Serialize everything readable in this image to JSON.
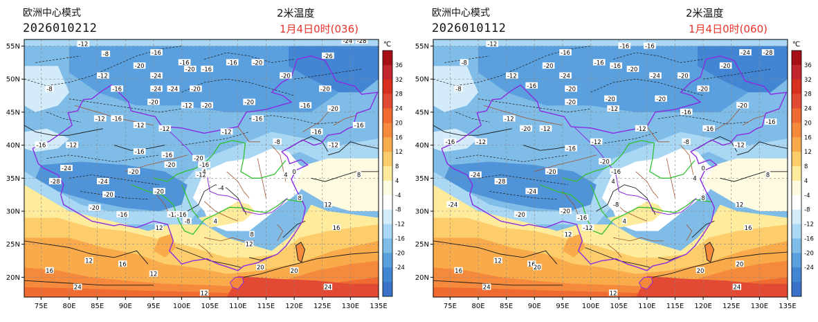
{
  "panels": [
    {
      "id": "left",
      "model": "欧洲中心模式",
      "run": "2026010212",
      "variable": "2米温度",
      "valid": "1月4日0时(036)",
      "contour_labels": [
        {
          "v": -12,
          "lon": 82.5,
          "lat": 55.3
        },
        {
          "v": -8,
          "lon": 86.5,
          "lat": 53.8
        },
        {
          "v": -16,
          "lon": 95.5,
          "lat": 54.0
        },
        {
          "v": -20,
          "lon": 92.5,
          "lat": 52.0
        },
        {
          "v": -24,
          "lon": 95.5,
          "lat": 50.5
        },
        {
          "v": -24,
          "lon": 95.5,
          "lat": 48.5
        },
        {
          "v": -24,
          "lon": 98.5,
          "lat": 48.5
        },
        {
          "v": -20,
          "lon": 102.5,
          "lat": 48.5
        },
        {
          "v": -16,
          "lon": 104.5,
          "lat": 51.5
        },
        {
          "v": -20,
          "lon": 101.5,
          "lat": 51.5
        },
        {
          "v": -16,
          "lon": 100.5,
          "lat": 52.5
        },
        {
          "v": -16,
          "lon": 109.0,
          "lat": 52.5
        },
        {
          "v": -20,
          "lon": 113.5,
          "lat": 52.5
        },
        {
          "v": -12,
          "lon": 86.0,
          "lat": 50.5
        },
        {
          "v": -16,
          "lon": 88.5,
          "lat": 48.5
        },
        {
          "v": -20,
          "lon": 95.0,
          "lat": 46.5
        },
        {
          "v": -8,
          "lon": 76.5,
          "lat": 48.5
        },
        {
          "v": -20,
          "lon": 118.5,
          "lat": 50.5
        },
        {
          "v": -26,
          "lon": 126.0,
          "lat": 53.5
        },
        {
          "v": -24,
          "lon": 129.5,
          "lat": 55.8
        },
        {
          "v": -28,
          "lon": 132.0,
          "lat": 55.8
        },
        {
          "v": -20,
          "lon": 125.5,
          "lat": 48.5
        },
        {
          "v": -16,
          "lon": 122.0,
          "lat": 46.0
        },
        {
          "v": -20,
          "lon": 112.0,
          "lat": 46.5
        },
        {
          "v": -12,
          "lon": 101.0,
          "lat": 46.0
        },
        {
          "v": -20,
          "lon": 104.5,
          "lat": 46.0
        },
        {
          "v": -16,
          "lon": 113.5,
          "lat": 44.0
        },
        {
          "v": -12,
          "lon": 108.0,
          "lat": 42.0
        },
        {
          "v": -20,
          "lon": 127.0,
          "lat": 45.5
        },
        {
          "v": -16,
          "lon": 131.5,
          "lat": 43.0
        },
        {
          "v": -16,
          "lon": 124.0,
          "lat": 42.0
        },
        {
          "v": -12,
          "lon": 127.0,
          "lat": 40.0
        },
        {
          "v": -8,
          "lon": 117.0,
          "lat": 40.5
        },
        {
          "v": -12,
          "lon": 85.5,
          "lat": 44.0
        },
        {
          "v": -16,
          "lon": 88.5,
          "lat": 44.0
        },
        {
          "v": -12,
          "lon": 92.5,
          "lat": 43.0
        },
        {
          "v": -12,
          "lon": 97.0,
          "lat": 42.5
        },
        {
          "v": -16,
          "lon": 75.0,
          "lat": 40.0
        },
        {
          "v": -12,
          "lon": 80.5,
          "lat": 40.0
        },
        {
          "v": -16,
          "lon": 92.5,
          "lat": 39.0
        },
        {
          "v": -20,
          "lon": 103.0,
          "lat": 38.0
        },
        {
          "v": -16,
          "lon": 104.0,
          "lat": 37.0
        },
        {
          "v": -20,
          "lon": 98.0,
          "lat": 37.0
        },
        {
          "v": -16,
          "lon": 97.5,
          "lat": 38.5
        },
        {
          "v": -12,
          "lon": 103.5,
          "lat": 35.5
        },
        {
          "v": -24,
          "lon": 79.5,
          "lat": 36.5
        },
        {
          "v": -28,
          "lon": 77.5,
          "lat": 34.5
        },
        {
          "v": -24,
          "lon": 86.0,
          "lat": 34.5
        },
        {
          "v": -20,
          "lon": 91.5,
          "lat": 36.0
        },
        {
          "v": -20,
          "lon": 96.0,
          "lat": 33.0
        },
        {
          "v": -20,
          "lon": 87.0,
          "lat": 32.5
        },
        {
          "v": -20,
          "lon": 84.5,
          "lat": 30.5
        },
        {
          "v": -16,
          "lon": 89.5,
          "lat": 29.5
        },
        {
          "v": -12,
          "lon": 98.5,
          "lat": 29.5
        },
        {
          "v": -16,
          "lon": 100.0,
          "lat": 29.5
        },
        {
          "v": -8,
          "lon": 101.0,
          "lat": 28.5
        },
        {
          "v": -4,
          "lon": 107.0,
          "lat": 33.5
        },
        {
          "v": 4,
          "lon": 104.0,
          "lat": 36.0
        },
        {
          "v": 4,
          "lon": 118.5,
          "lat": 35.5
        },
        {
          "v": 8,
          "lon": 121.0,
          "lat": 32.0
        },
        {
          "v": 0,
          "lon": 120.0,
          "lat": 36.0
        },
        {
          "v": 8,
          "lon": 112.5,
          "lat": 26.5
        },
        {
          "v": 12,
          "lon": 96.0,
          "lat": 27.5
        },
        {
          "v": 12,
          "lon": 83.5,
          "lat": 22.5
        },
        {
          "v": 16,
          "lon": 89.5,
          "lat": 22.0
        },
        {
          "v": 12,
          "lon": 95.0,
          "lat": 20.5
        },
        {
          "v": 16,
          "lon": 76.5,
          "lat": 21.0
        },
        {
          "v": 20,
          "lon": 114.0,
          "lat": 21.5
        },
        {
          "v": 12,
          "lon": 112.0,
          "lat": 25.0
        },
        {
          "v": 16,
          "lon": 127.5,
          "lat": 27.5
        },
        {
          "v": 12,
          "lon": 126.0,
          "lat": 31.0
        },
        {
          "v": 20,
          "lon": 120.0,
          "lat": 21.0
        },
        {
          "v": 24,
          "lon": 126.0,
          "lat": 18.5
        },
        {
          "v": 24,
          "lon": 81.5,
          "lat": 18.5
        },
        {
          "v": 12,
          "lon": 104.0,
          "lat": 17.6
        },
        {
          "v": 4,
          "lon": 106.0,
          "lat": 28.5
        },
        {
          "v": 8,
          "lon": 131.5,
          "lat": 35.5
        }
      ]
    },
    {
      "id": "right",
      "model": "欧洲中心模式",
      "run": "2026010112",
      "variable": "2米温度",
      "valid": "1月4日0时(060)",
      "contour_labels": [
        {
          "v": -12,
          "lon": 82.5,
          "lat": 55.3
        },
        {
          "v": -8,
          "lon": 77.5,
          "lat": 52.5
        },
        {
          "v": -16,
          "lon": 95.5,
          "lat": 54.0
        },
        {
          "v": -20,
          "lon": 92.5,
          "lat": 52.0
        },
        {
          "v": -24,
          "lon": 95.5,
          "lat": 50.5
        },
        {
          "v": -20,
          "lon": 96.5,
          "lat": 48.5
        },
        {
          "v": -16,
          "lon": 101.5,
          "lat": 52.5
        },
        {
          "v": -16,
          "lon": 104.5,
          "lat": 52.0
        },
        {
          "v": -20,
          "lon": 107.5,
          "lat": 51.5
        },
        {
          "v": -16,
          "lon": 110.5,
          "lat": 55.0
        },
        {
          "v": -16,
          "lon": 106.0,
          "lat": 55.0
        },
        {
          "v": -24,
          "lon": 111.5,
          "lat": 50.5
        },
        {
          "v": -20,
          "lon": 116.5,
          "lat": 50.5
        },
        {
          "v": -12,
          "lon": 86.0,
          "lat": 50.5
        },
        {
          "v": -16,
          "lon": 89.5,
          "lat": 49.0
        },
        {
          "v": -20,
          "lon": 96.5,
          "lat": 46.5
        },
        {
          "v": -8,
          "lon": 76.5,
          "lat": 48.5
        },
        {
          "v": -20,
          "lon": 120.0,
          "lat": 48.5
        },
        {
          "v": -24,
          "lon": 127.5,
          "lat": 54.0
        },
        {
          "v": -28,
          "lon": 131.5,
          "lat": 54.0
        },
        {
          "v": -20,
          "lon": 124.0,
          "lat": 52.0
        },
        {
          "v": -20,
          "lon": 127.0,
          "lat": 46.0
        },
        {
          "v": -16,
          "lon": 117.0,
          "lat": 45.0
        },
        {
          "v": -20,
          "lon": 112.5,
          "lat": 47.0
        },
        {
          "v": -12,
          "lon": 104.0,
          "lat": 45.5
        },
        {
          "v": -20,
          "lon": 103.5,
          "lat": 47.0
        },
        {
          "v": -16,
          "lon": 121.0,
          "lat": 42.5
        },
        {
          "v": -12,
          "lon": 109.0,
          "lat": 42.5
        },
        {
          "v": -16,
          "lon": 132.0,
          "lat": 43.5
        },
        {
          "v": -12,
          "lon": 126.5,
          "lat": 40.0
        },
        {
          "v": -8,
          "lon": 117.0,
          "lat": 40.5
        },
        {
          "v": -12,
          "lon": 85.5,
          "lat": 44.0
        },
        {
          "v": -20,
          "lon": 88.5,
          "lat": 42.5
        },
        {
          "v": -12,
          "lon": 92.0,
          "lat": 42.5
        },
        {
          "v": -12,
          "lon": 101.0,
          "lat": 40.5
        },
        {
          "v": -16,
          "lon": 75.0,
          "lat": 40.5
        },
        {
          "v": -12,
          "lon": 80.5,
          "lat": 40.5
        },
        {
          "v": -16,
          "lon": 96.5,
          "lat": 39.5
        },
        {
          "v": -20,
          "lon": 102.5,
          "lat": 37.5
        },
        {
          "v": -16,
          "lon": 104.5,
          "lat": 36.0
        },
        {
          "v": -24,
          "lon": 79.5,
          "lat": 35.5
        },
        {
          "v": -28,
          "lon": 84.0,
          "lat": 34.5
        },
        {
          "v": -24,
          "lon": 89.5,
          "lat": 33.0
        },
        {
          "v": -20,
          "lon": 93.0,
          "lat": 36.0
        },
        {
          "v": -20,
          "lon": 95.5,
          "lat": 30.0
        },
        {
          "v": -20,
          "lon": 87.5,
          "lat": 29.5
        },
        {
          "v": -24,
          "lon": 75.5,
          "lat": 31.0
        },
        {
          "v": -16,
          "lon": 98.5,
          "lat": 29.0
        },
        {
          "v": -12,
          "lon": 99.5,
          "lat": 27.5
        },
        {
          "v": -8,
          "lon": 104.5,
          "lat": 31.0
        },
        {
          "v": 4,
          "lon": 104.0,
          "lat": 34.5
        },
        {
          "v": 4,
          "lon": 118.5,
          "lat": 35.0
        },
        {
          "v": 8,
          "lon": 120.0,
          "lat": 32.0
        },
        {
          "v": 0,
          "lon": 120.0,
          "lat": 36.5
        },
        {
          "v": 12,
          "lon": 126.5,
          "lat": 31.0
        },
        {
          "v": 16,
          "lon": 128.0,
          "lat": 27.5
        },
        {
          "v": 12,
          "lon": 96.0,
          "lat": 26.5
        },
        {
          "v": 12,
          "lon": 83.5,
          "lat": 22.5
        },
        {
          "v": 16,
          "lon": 89.5,
          "lat": 22.0
        },
        {
          "v": 20,
          "lon": 90.5,
          "lat": 21.5
        },
        {
          "v": 16,
          "lon": 76.5,
          "lat": 21.0
        },
        {
          "v": 20,
          "lon": 119.5,
          "lat": 21.0
        },
        {
          "v": 20,
          "lon": 126.5,
          "lat": 22.0
        },
        {
          "v": 24,
          "lon": 126.0,
          "lat": 18.5
        },
        {
          "v": 24,
          "lon": 81.5,
          "lat": 18.5
        },
        {
          "v": 12,
          "lon": 104.0,
          "lat": 17.6
        },
        {
          "v": 8,
          "lon": 131.5,
          "lat": 35.5
        },
        {
          "v": 4,
          "lon": 106.0,
          "lat": 28.5
        }
      ]
    }
  ],
  "map_extent": {
    "lon_min": 72,
    "lon_max": 135,
    "lat_min": 17,
    "lat_max": 56
  },
  "lon_ticks": [
    "75E",
    "80E",
    "85E",
    "90E",
    "95E",
    "100E",
    "105E",
    "110E",
    "115E",
    "120E",
    "125E",
    "130E",
    "135E"
  ],
  "lon_tick_values": [
    75,
    80,
    85,
    90,
    95,
    100,
    105,
    110,
    115,
    120,
    125,
    130,
    135
  ],
  "lat_ticks": [
    "20N",
    "25N",
    "30N",
    "35N",
    "40N",
    "45N",
    "50N",
    "55N"
  ],
  "lat_tick_values": [
    20,
    25,
    30,
    35,
    40,
    45,
    50,
    55
  ],
  "legend": {
    "unit": "℃",
    "labels": [
      "36",
      "32",
      "28",
      "24",
      "20",
      "16",
      "12",
      "8",
      "4",
      "-4",
      "-8",
      "-12",
      "-16",
      "-20",
      "-24"
    ],
    "colors": [
      "#a50f15",
      "#c1272d",
      "#d7301f",
      "#e34a33",
      "#ef6b31",
      "#f58a3c",
      "#f9ab4b",
      "#fccd6a",
      "#feeb9c",
      "#fffbe0",
      "#ffffff",
      "#d4ecfa",
      "#a9d7f4",
      "#7fbde8",
      "#5aa0de",
      "#4285d3",
      "#3a72c9"
    ]
  },
  "palette": {
    "red_text": "#e8322a",
    "border_purple": "#8a2be2",
    "river_green": "#2fbf2f",
    "province_brown": "#a0522d"
  }
}
